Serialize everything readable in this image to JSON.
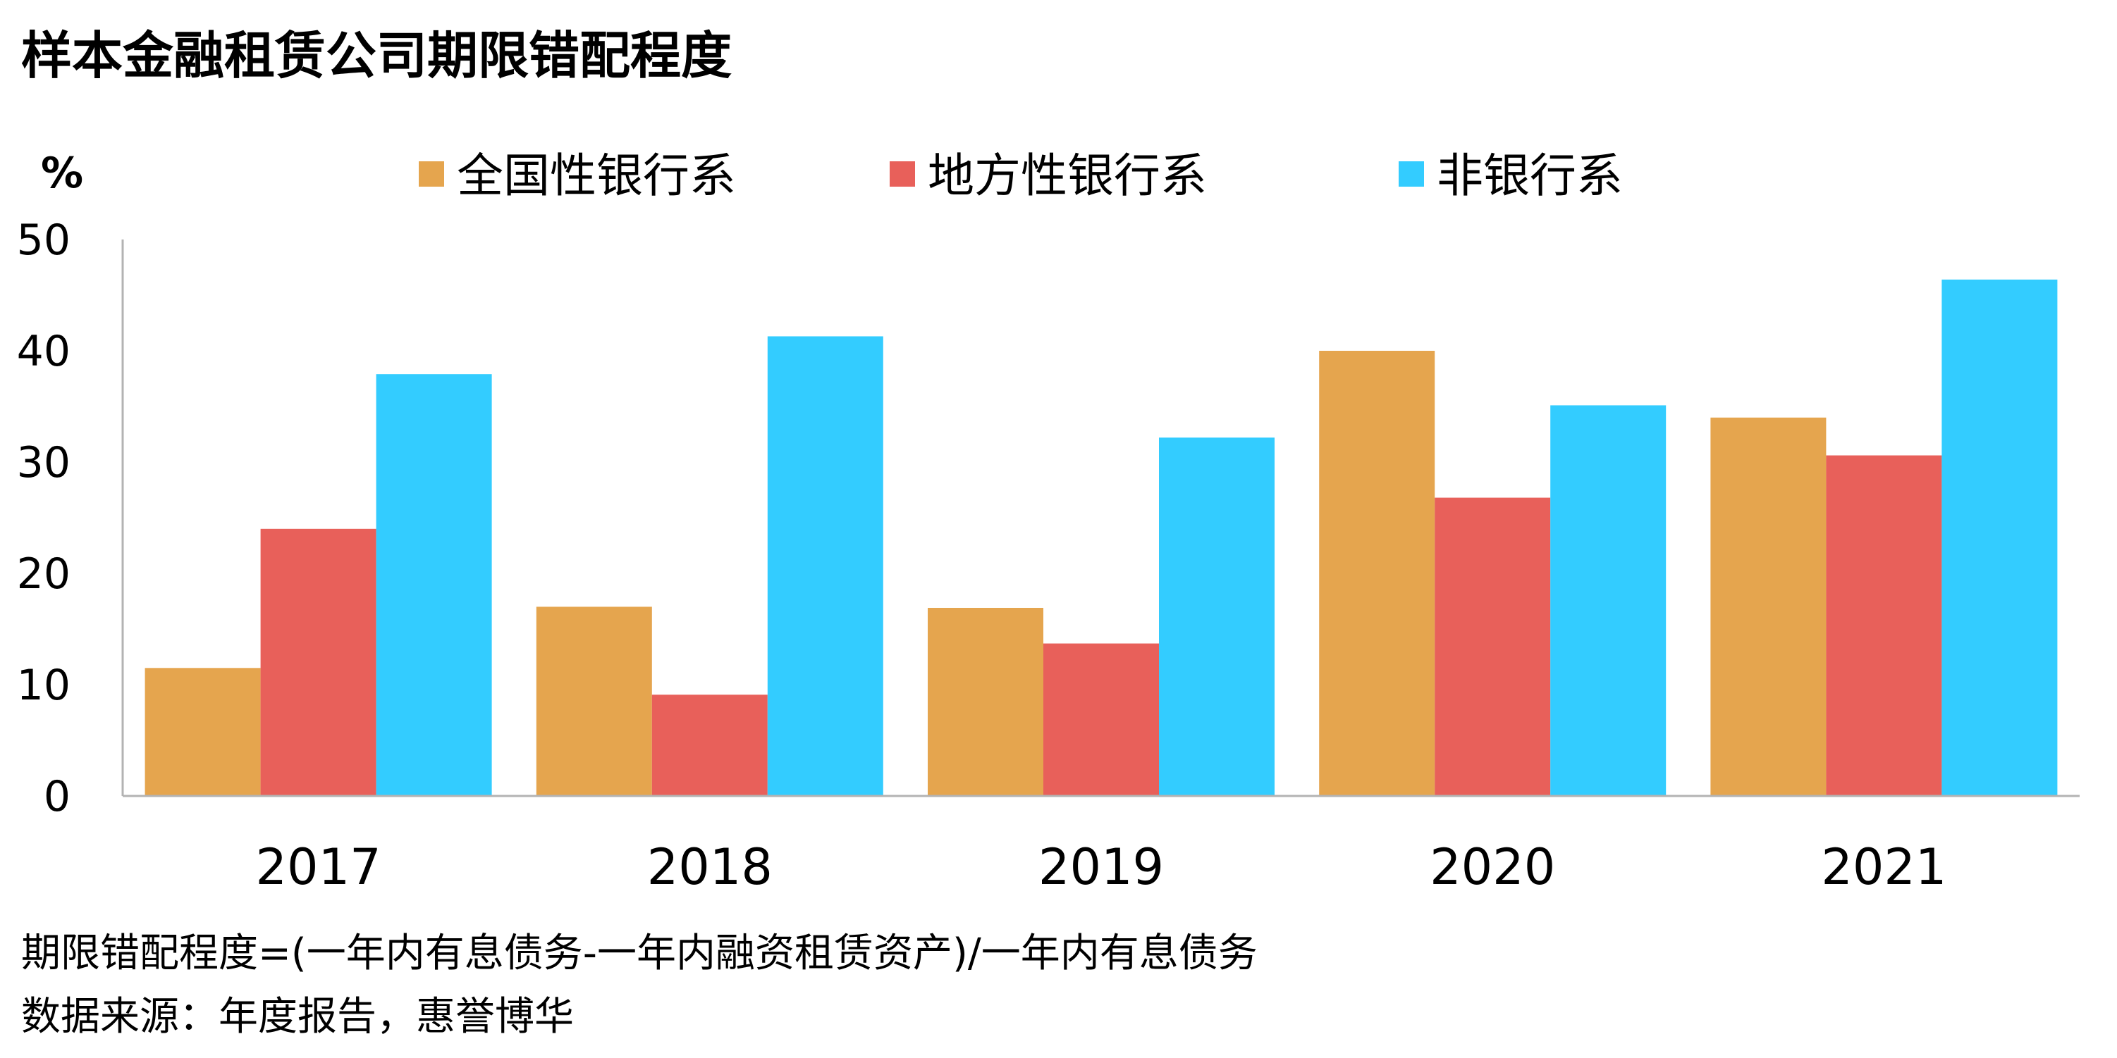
{
  "chart_data": {
    "type": "bar",
    "title": "样本金融租赁公司期限错配程度",
    "ylabel": "%",
    "xlabel": "",
    "ylim": [
      0,
      50
    ],
    "yticks": [
      0,
      10,
      20,
      30,
      40,
      50
    ],
    "categories": [
      "2017",
      "2018",
      "2019",
      "2020",
      "2021"
    ],
    "legend_position": "top",
    "grid": false,
    "series": [
      {
        "name": "全国性银行系",
        "color": "#E5A54E",
        "values": [
          11.5,
          17.0,
          16.9,
          40.0,
          34.0
        ]
      },
      {
        "name": "地方性银行系",
        "color": "#E8605A",
        "values": [
          24.0,
          9.1,
          13.7,
          26.8,
          30.6
        ]
      },
      {
        "name": "非银行系",
        "color": "#33CCFF",
        "values": [
          37.9,
          41.3,
          32.2,
          35.1,
          46.4
        ]
      }
    ],
    "notes": [
      "期限错配程度=(一年内有息债务-一年内融资租赁资产)/一年内有息债务",
      "数据来源：年度报告，惠誉博华"
    ]
  }
}
